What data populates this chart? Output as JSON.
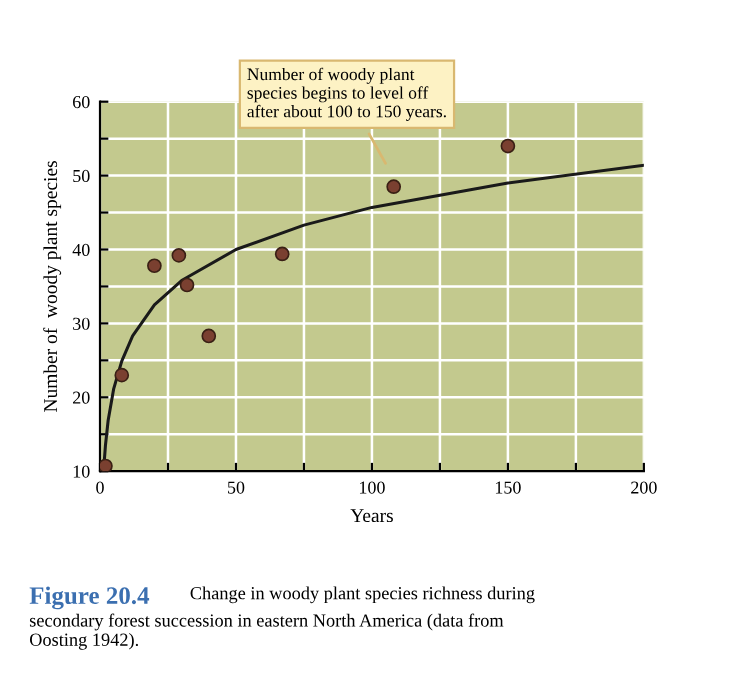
{
  "chart_data": {
    "type": "scatter",
    "xlabel": "Years",
    "ylabel": "Number of  woody plant species",
    "series": [
      {
        "color": "#7a4030",
        "marker": "circle",
        "x": [
          2,
          8,
          20,
          29,
          32,
          40,
          67,
          108,
          150
        ],
        "values": [
          10.7,
          23,
          37.8,
          39.2,
          35.2,
          28.3,
          39.4,
          48.5,
          54
        ]
      },
      {
        "type": "line",
        "color": "#1a1a1a",
        "x": [
          1.3,
          2,
          3,
          5,
          8,
          12,
          20,
          30,
          50,
          75,
          100,
          150,
          200
        ],
        "values": [
          10,
          13.5,
          16.9,
          21.1,
          24.9,
          28.3,
          32.5,
          35.8,
          40,
          43.3,
          45.7,
          49,
          51.4
        ]
      }
    ],
    "xlim": [
      0,
      200
    ],
    "ylim": [
      10,
      60
    ],
    "xticks": [
      0,
      {
        "value": 25,
        "label": null
      },
      50,
      {
        "value": 75,
        "label": null
      },
      100,
      {
        "value": 125,
        "label": null
      },
      150,
      {
        "value": 175,
        "label": null
      },
      200
    ],
    "yticks": [
      10,
      {
        "value": 15,
        "label": null
      },
      20,
      {
        "value": 25,
        "label": null
      },
      30,
      {
        "value": 35,
        "label": null
      },
      40,
      {
        "value": 45,
        "label": null
      },
      50,
      {
        "value": 55,
        "label": null
      },
      60
    ],
    "grid": true,
    "annotations": [
      "Number of woody plant\nspecies begins to level off\nafter about 100 to 150 years.",
      "Figure 20.4",
      "Change in woody plant species richness during\nsecondary forest succession in eastern North America (data from\nOosting 1942)."
    ]
  }
}
